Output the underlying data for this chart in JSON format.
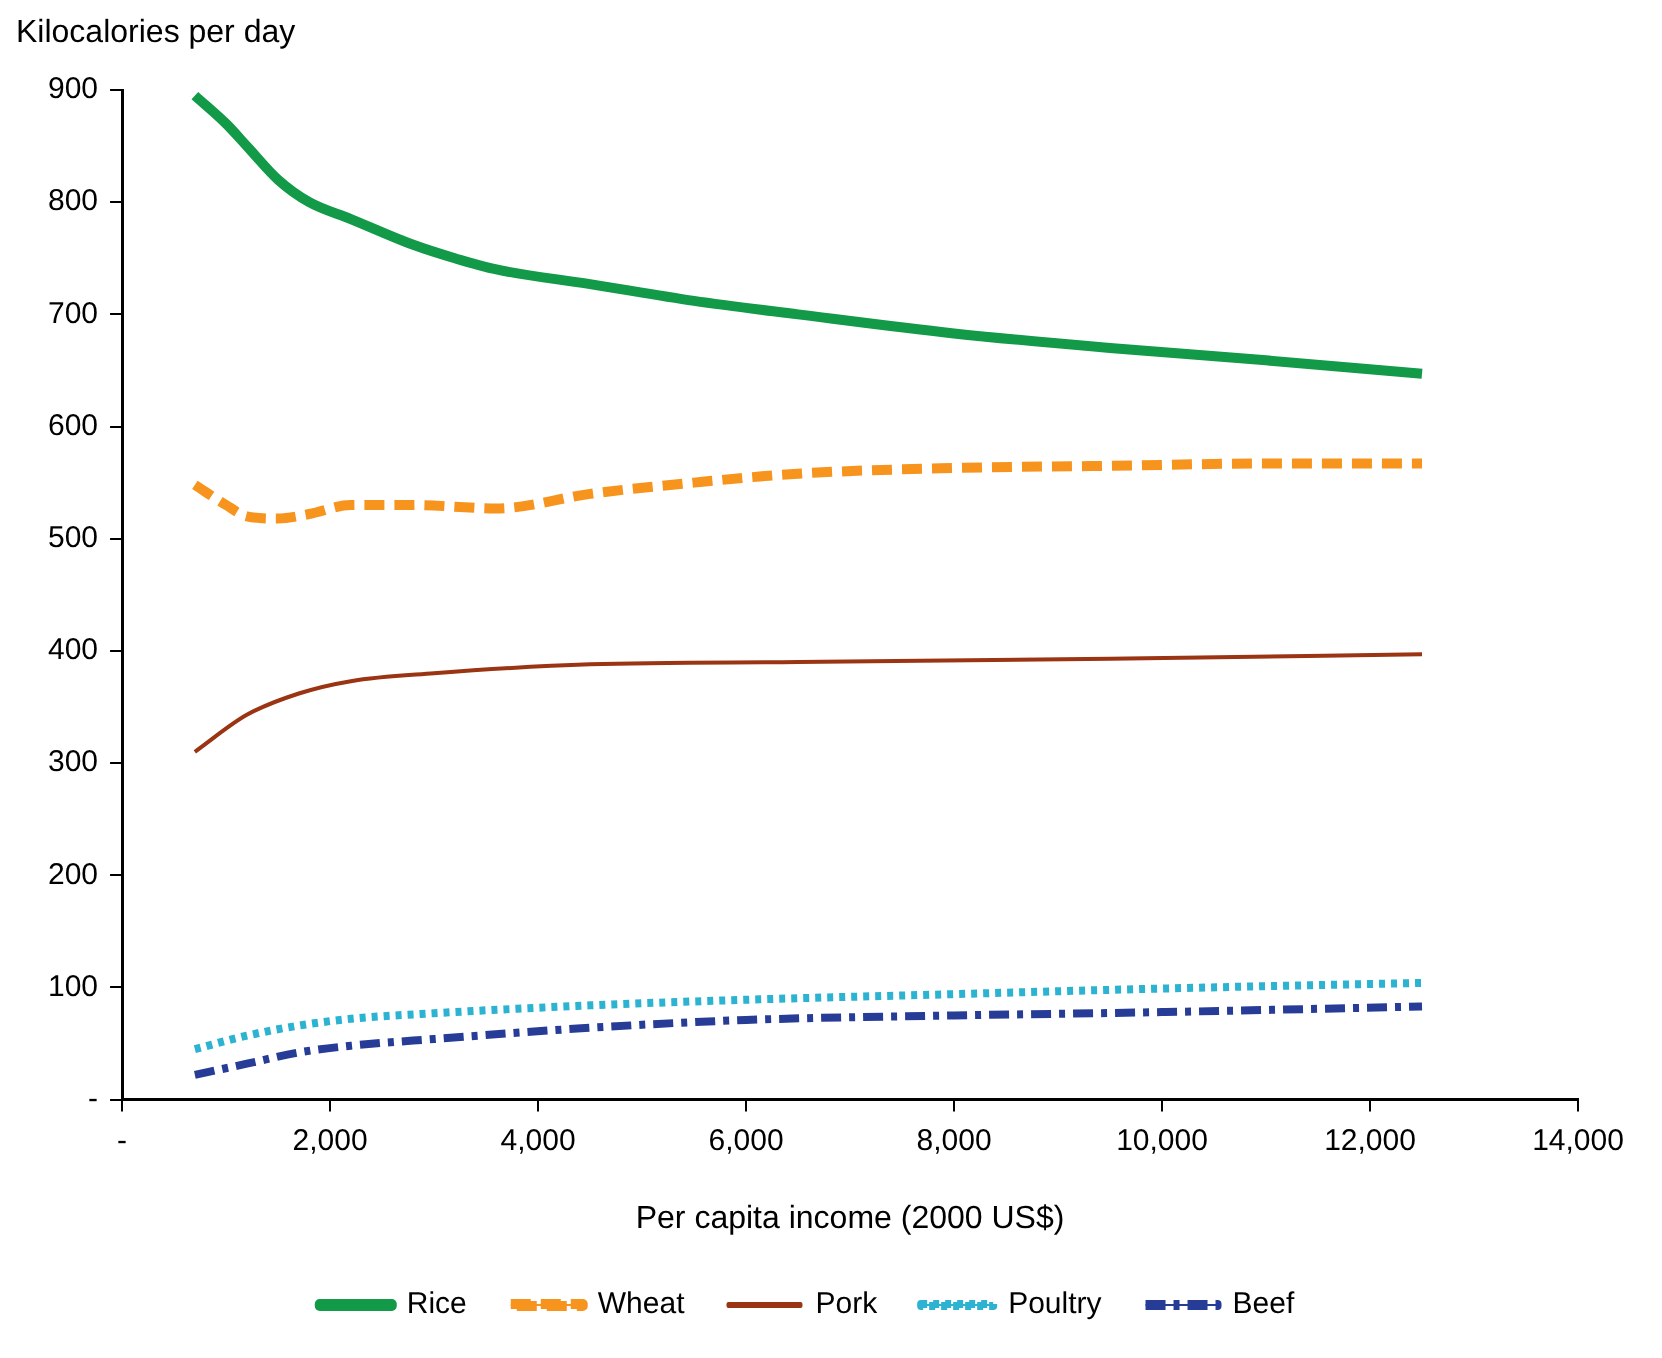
{
  "chart_data": {
    "type": "line",
    "xlabel": "Per capita income (2000 US$)",
    "ylabel": "Kilocalories per day",
    "xlim": [
      0,
      14000
    ],
    "xticks": [
      {
        "value": 0,
        "label": "-"
      },
      {
        "value": 2000,
        "label": "2,000"
      },
      {
        "value": 4000,
        "label": "4,000"
      },
      {
        "value": 6000,
        "label": "6,000"
      },
      {
        "value": 8000,
        "label": "8,000"
      },
      {
        "value": 10000,
        "label": "10,000"
      },
      {
        "value": 12000,
        "label": "12,000"
      },
      {
        "value": 14000,
        "label": "14,000"
      }
    ],
    "ylim": [
      0,
      900
    ],
    "yticks": [
      {
        "value": 0,
        "label": "-"
      },
      100,
      200,
      300,
      400,
      500,
      600,
      700,
      800,
      900
    ],
    "grid": false,
    "legend": "bottom",
    "marker": "none",
    "series": [
      {
        "name": "Rice",
        "color": "#129a48",
        "line_style": "solid",
        "x": [
          700,
          1000,
          1200,
          1500,
          1800,
          2200,
          2800,
          3200,
          3600,
          4500,
          5500,
          6500,
          8000,
          9500,
          11000,
          12500
        ],
        "values": [
          895,
          870,
          850,
          820,
          800,
          785,
          762,
          750,
          740,
          727,
          712,
          700,
          683,
          670,
          659,
          647
        ]
      },
      {
        "name": "Wheat",
        "color": "#f7941d",
        "line_style": "dashed",
        "x": [
          700,
          1000,
          1200,
          1500,
          1800,
          2200,
          2800,
          3600,
          4500,
          5500,
          6500,
          8000,
          9500,
          11000,
          12500
        ],
        "values": [
          548,
          530,
          520,
          518,
          522,
          530,
          530,
          527,
          540,
          550,
          558,
          563,
          565,
          567,
          567
        ]
      },
      {
        "name": "Pork",
        "color": "#9a3412",
        "line_style": "solid",
        "x": [
          700,
          1200,
          1700,
          2200,
          3000,
          4500,
          6500,
          9500,
          12500
        ],
        "values": [
          310,
          343,
          362,
          373,
          380,
          388,
          390,
          393,
          397
        ]
      },
      {
        "name": "Poultry",
        "color": "#2bb3d1",
        "line_style": "dotted",
        "x": [
          700,
          1200,
          1700,
          2200,
          3000,
          4500,
          6000,
          8000,
          10000,
          12500
        ],
        "values": [
          45,
          57,
          66,
          72,
          77,
          84,
          89,
          94,
          99,
          104
        ]
      },
      {
        "name": "Beef",
        "color": "#263c96",
        "line_style": "dashdot",
        "x": [
          700,
          1200,
          1700,
          2200,
          3000,
          4500,
          6000,
          8000,
          10000,
          12500
        ],
        "values": [
          22,
          32,
          42,
          48,
          54,
          64,
          71,
          75,
          78,
          83
        ]
      }
    ]
  }
}
